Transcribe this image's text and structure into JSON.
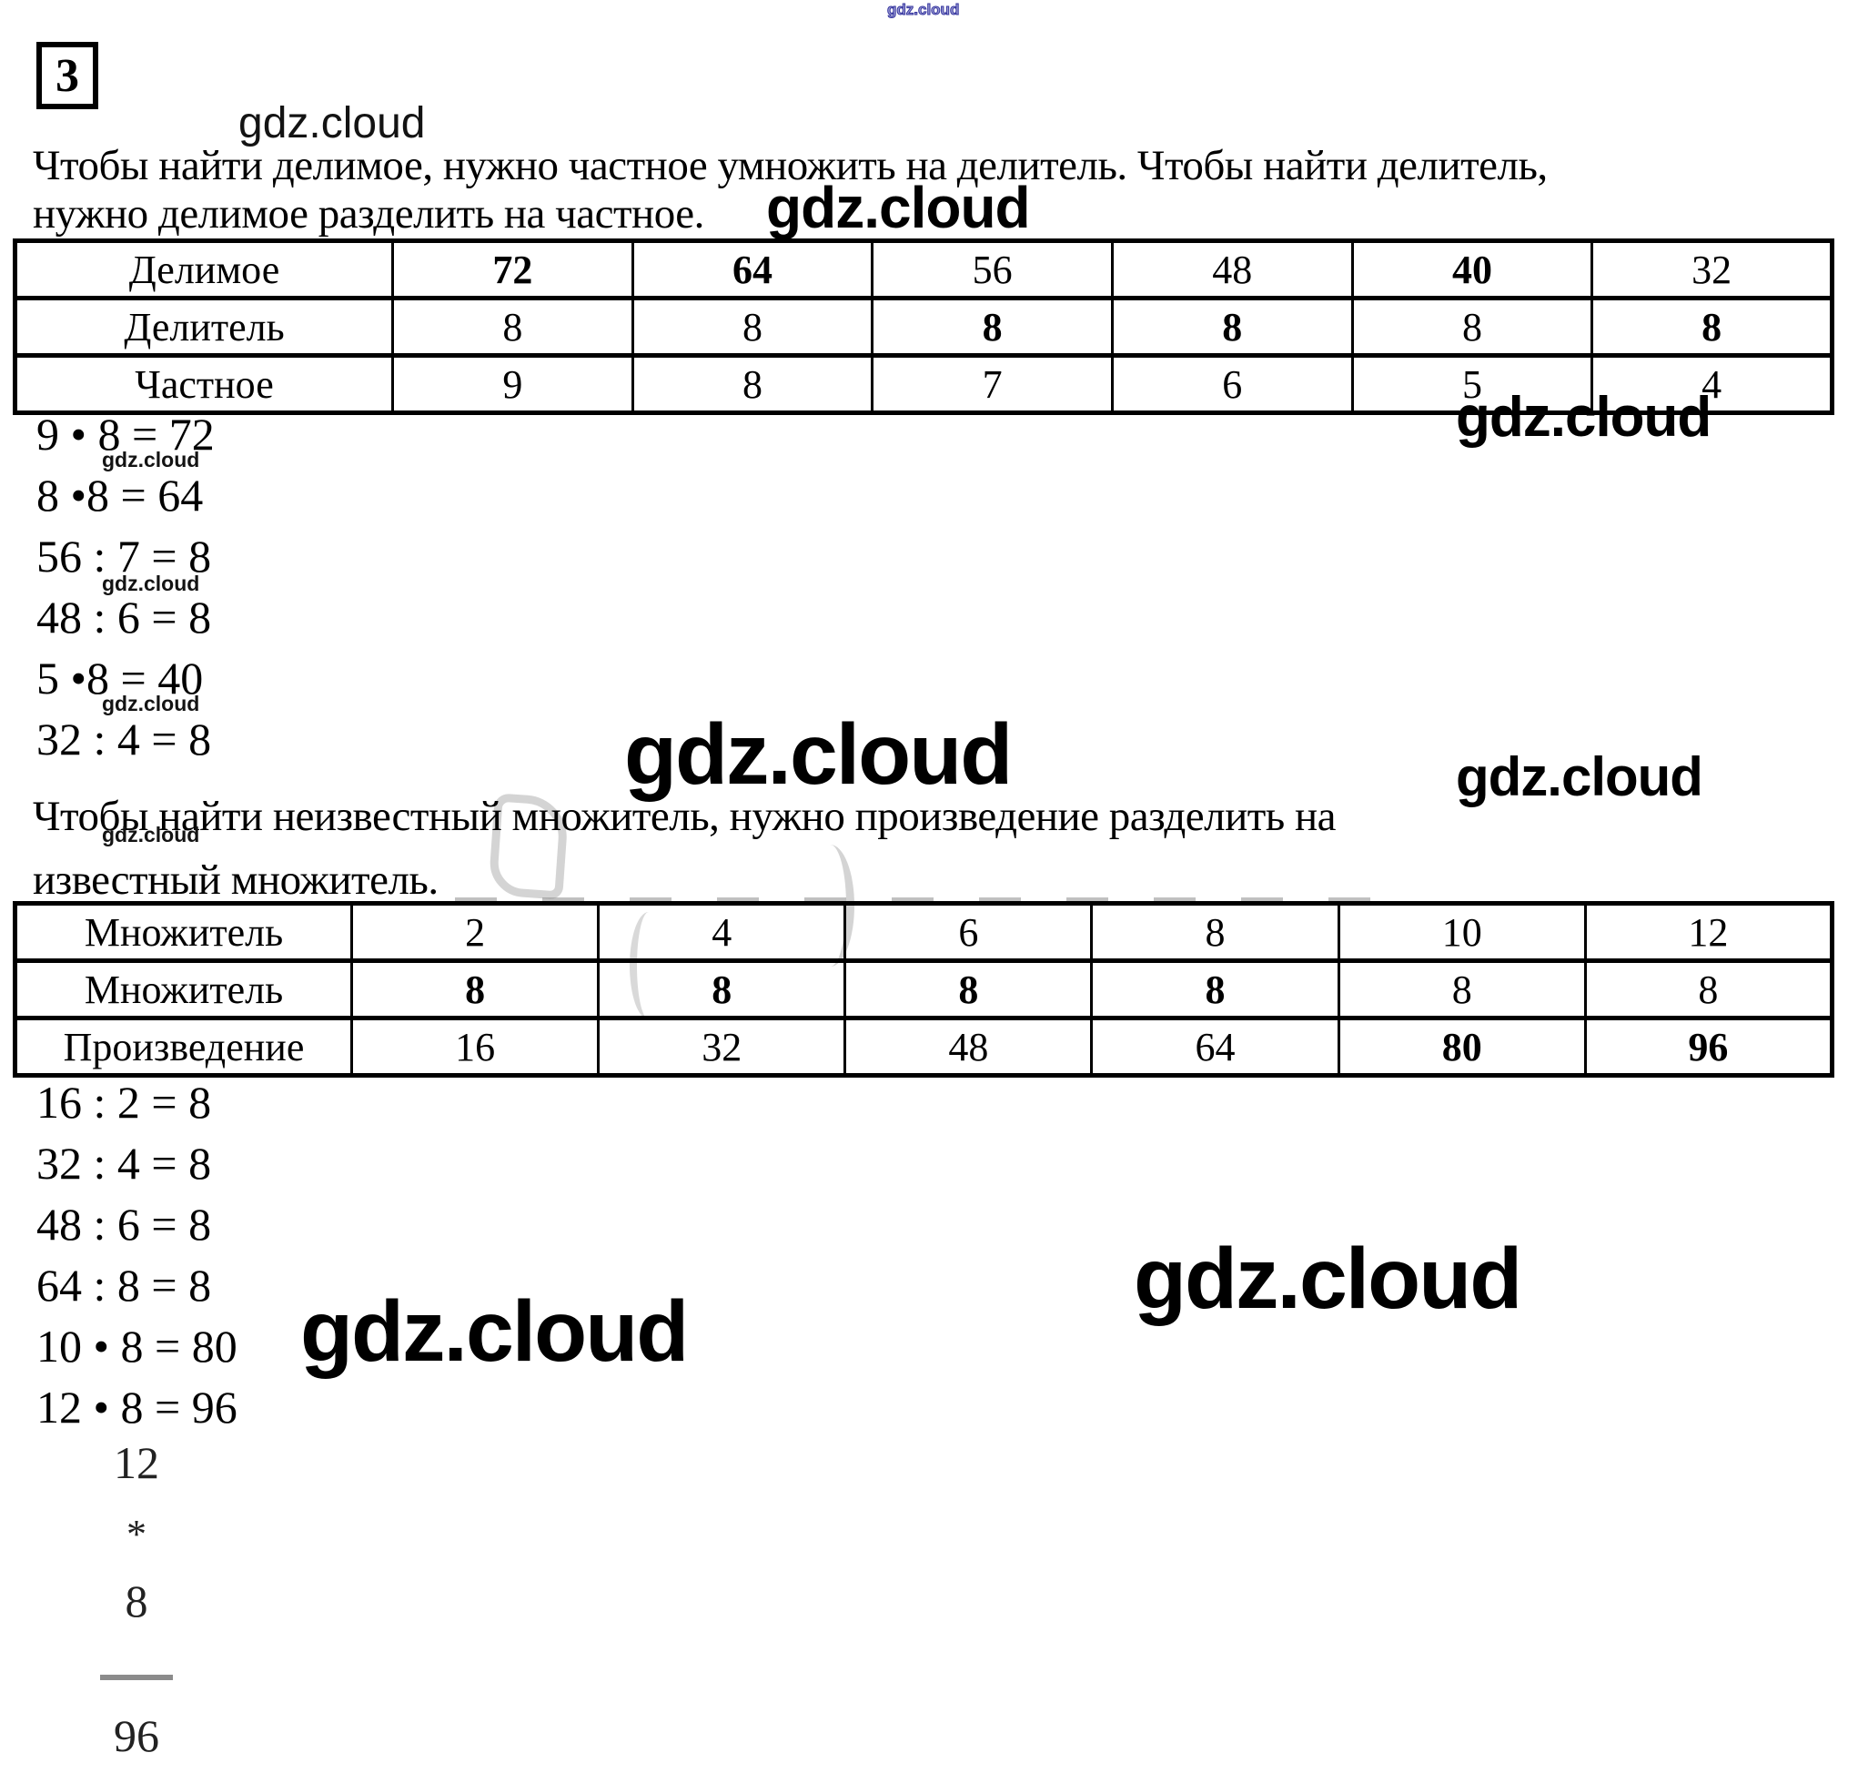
{
  "problem_number": "3",
  "colors": {
    "watermark_blue": "#34349e",
    "ghost_gray": "#a0a0a0",
    "text_black": "#000000"
  },
  "watermarks": {
    "top": "gdz.cloud",
    "header": "gdz.cloud",
    "after_intro": "gdz.cloud",
    "table1_right": "gdz.cloud",
    "center": "gdz.cloud",
    "mid_right": "gdz.cloud",
    "small_1": "gdz.cloud",
    "small_2": "gdz.cloud",
    "small_3": "gdz.cloud",
    "small_4": "gdz.cloud",
    "bottom_left": "gdz.cloud",
    "bottom_right": "gdz.cloud"
  },
  "intro_division": {
    "line1": "Чтобы найти делимое, нужно частное умножить на делитель. Чтобы найти делитель,",
    "line2": "нужно делимое разделить на частное."
  },
  "division_table": {
    "rows": [
      {
        "label": "Делимое",
        "values": [
          "72",
          "64",
          "56",
          "48",
          "40",
          "32"
        ],
        "bold": [
          true,
          true,
          false,
          false,
          true,
          false
        ]
      },
      {
        "label": "Делитель",
        "values": [
          "8",
          "8",
          "8",
          "8",
          "8",
          "8"
        ],
        "bold": [
          false,
          false,
          true,
          true,
          false,
          true
        ]
      },
      {
        "label": "Частное",
        "values": [
          "9",
          "8",
          "7",
          "6",
          "5",
          "4"
        ],
        "bold": [
          false,
          false,
          false,
          false,
          false,
          false
        ]
      }
    ]
  },
  "division_equations": [
    "9 • 8 = 72",
    "8 •8 = 64",
    "56 : 7 = 8",
    "48 : 6 = 8",
    "5 •8 = 40",
    "32 : 4 = 8"
  ],
  "intro_multiplication": {
    "line1": "Чтобы найти неизвестный множитель, нужно произведение разделить на",
    "line2": "известный множитель."
  },
  "multiplication_table": {
    "rows": [
      {
        "label": "Множитель",
        "values": [
          "2",
          "4",
          "6",
          "8",
          "10",
          "12"
        ],
        "bold": [
          false,
          false,
          false,
          false,
          false,
          false
        ]
      },
      {
        "label": "Множитель",
        "values": [
          "8",
          "8",
          "8",
          "8",
          "8",
          "8"
        ],
        "bold": [
          true,
          true,
          true,
          true,
          false,
          false
        ]
      },
      {
        "label": "Произведение",
        "values": [
          "16",
          "32",
          "48",
          "64",
          "80",
          "96"
        ],
        "bold": [
          false,
          false,
          false,
          false,
          true,
          true
        ]
      }
    ]
  },
  "multiplication_equations": [
    "16 : 2 = 8",
    "32 : 4 = 8",
    "48 : 6 = 8",
    "64 : 8 = 8",
    "10 • 8 = 80",
    "12 • 8 = 96"
  ],
  "long_multiplication": {
    "multiplicand": "12",
    "operator": "*",
    "multiplier": "8",
    "result": "96"
  }
}
